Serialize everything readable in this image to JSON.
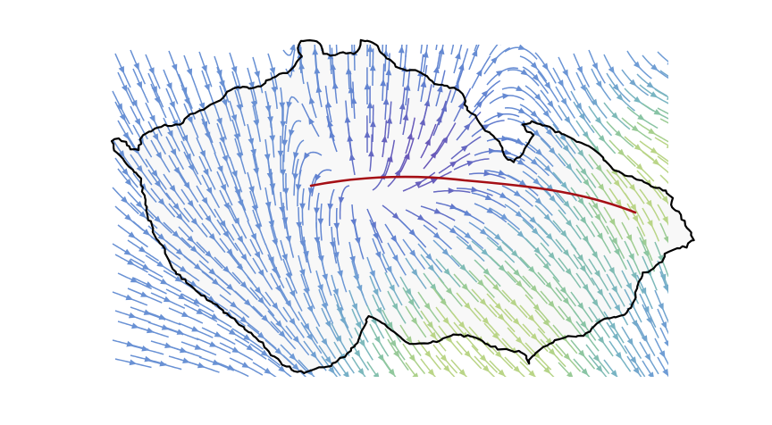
{
  "figure": {
    "type": "streamline-map",
    "subject": "Czech Republic",
    "has_title": false,
    "has_axes": false,
    "has_legend": false,
    "has_colorbar": false
  },
  "colors": {
    "background": "#ffffff",
    "country_fill": "#f8f8f8",
    "border": "#000000",
    "divide_line": "#a50f15",
    "stream_palette": [
      "#5a3e9e",
      "#6a51b4",
      "#6080d0",
      "#6e9ad6",
      "#78b4c4",
      "#88c4a4",
      "#a8d08c",
      "#c4d884"
    ]
  },
  "styles": {
    "border_line": "solid",
    "divide_line": "solid",
    "stream_arrows": "filled-triangle"
  }
}
